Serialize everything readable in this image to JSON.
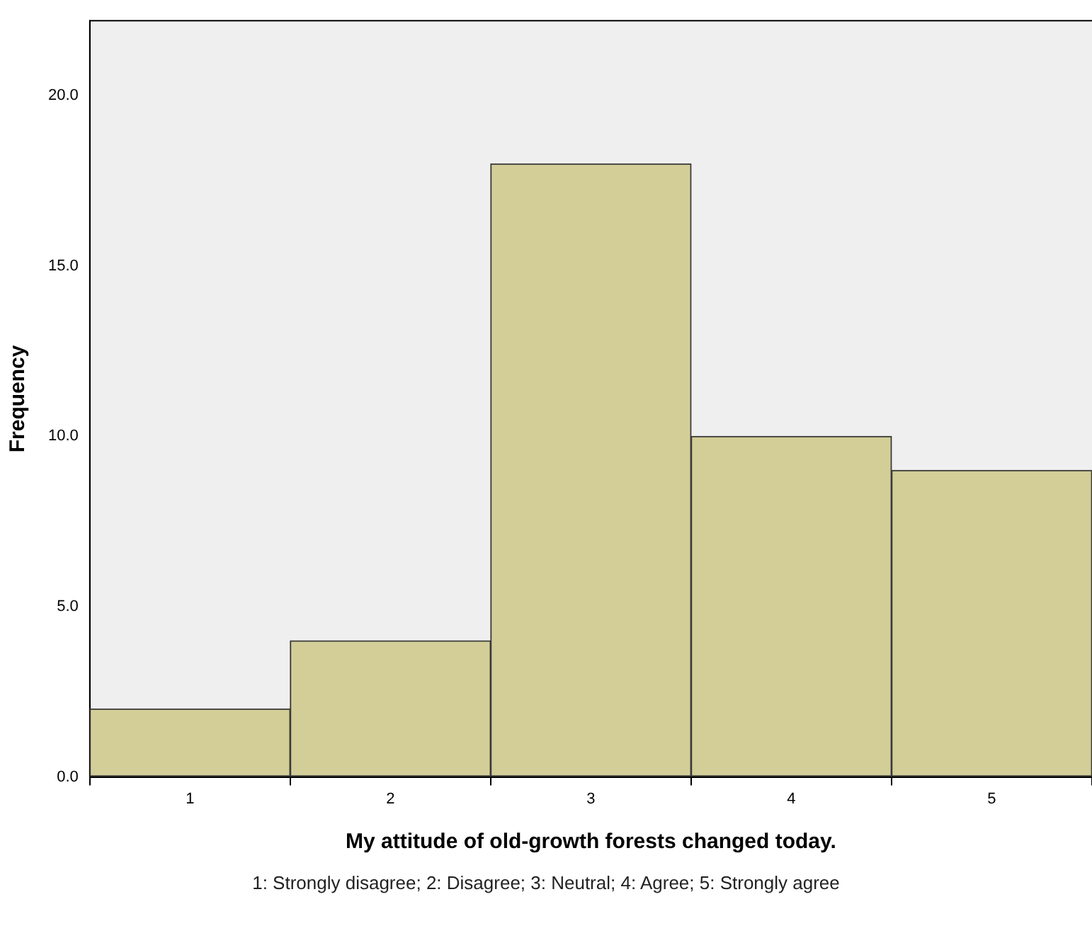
{
  "chart_data": {
    "type": "histogram",
    "xlabel": "My attitude of old-growth forests changed today.",
    "ylabel": "Frequency",
    "bins": [
      0.5,
      1.5,
      2.5,
      3.5,
      4.5,
      5.5
    ],
    "values": [
      2,
      4,
      18,
      10,
      9
    ],
    "color": "#d3ce97",
    "xlim": [
      0.5,
      5.5
    ],
    "xticks": [
      1,
      2,
      3,
      4,
      5
    ],
    "ylim": [
      0,
      22.2
    ],
    "yticks": [
      {
        "value": 0,
        "label": "0.0"
      },
      {
        "value": 5,
        "label": "5.0"
      },
      {
        "value": 10,
        "label": "10.0"
      },
      {
        "value": 15,
        "label": "15.0"
      },
      {
        "value": 20,
        "label": "20.0"
      }
    ],
    "grid": false,
    "legend": false,
    "annotations": [
      "1: Strongly disagree; 2: Disagree; 3: Neutral; 4: Agree; 5: Strongly agree"
    ]
  }
}
